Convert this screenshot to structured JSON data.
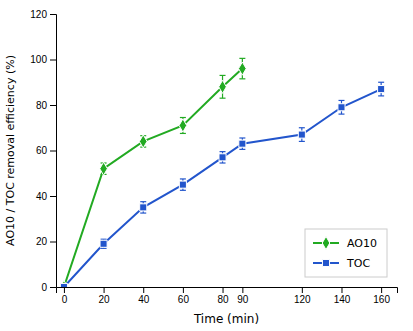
{
  "chart_data": {
    "type": "line",
    "xlabel": "Time (min)",
    "ylabel": "AO10 / TOC removal efficiency (%)",
    "xlim": [
      -4,
      168
    ],
    "ylim": [
      0,
      120
    ],
    "xticks": [
      0,
      20,
      40,
      60,
      80,
      90,
      120,
      140,
      160
    ],
    "yticks": [
      0,
      20,
      40,
      60,
      80,
      100,
      120
    ],
    "grid": false,
    "legend": "lower right",
    "series": [
      {
        "name": "AO10",
        "color": "#22aa22",
        "marker": "diamond",
        "x": [
          0,
          20,
          40,
          60,
          80,
          90
        ],
        "values": [
          0,
          52,
          64,
          71,
          88,
          96
        ],
        "yerr": [
          0,
          2.5,
          2.5,
          3.5,
          5.0,
          4.5
        ]
      },
      {
        "name": "TOC",
        "color": "#2255cc",
        "marker": "square",
        "x": [
          0,
          20,
          40,
          60,
          80,
          90,
          120,
          140,
          160
        ],
        "values": [
          0,
          19,
          35,
          45,
          57,
          63,
          67,
          79,
          87
        ],
        "yerr": [
          0,
          2.0,
          2.5,
          2.5,
          2.5,
          2.5,
          3.0,
          3.0,
          3.0
        ]
      }
    ]
  }
}
